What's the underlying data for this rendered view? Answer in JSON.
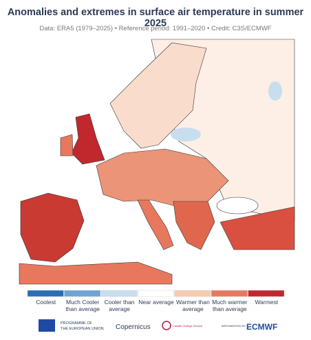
{
  "header": {
    "title": "Anomalies and extremes in surface air temperature in summer 2025",
    "subtitle": "Data: ERA5 (1979–2025) • Reference period: 1991–2020 • Credit: C3S/ECMWF"
  },
  "legend": {
    "items": [
      {
        "label": "Coolest",
        "color": "#2a6fb5"
      },
      {
        "label": "Much Cooler than average",
        "color": "#6fa3d6"
      },
      {
        "label": "Cooler than average",
        "color": "#c7deef"
      },
      {
        "label": "Near average",
        "color": "#ffffff"
      },
      {
        "label": "Warmer than average",
        "color": "#f8c9b1"
      },
      {
        "label": "Much warmer than average",
        "color": "#e7785e"
      },
      {
        "label": "Warmest",
        "color": "#c0282d"
      }
    ]
  },
  "footer": {
    "eu": [
      "PROGRAMME OF",
      "THE EUROPEAN UNION"
    ],
    "copernicus": "Copernicus",
    "c3s": "Climate Change Service",
    "implemented": "IMPLEMENTED BY",
    "ecmwf": "ECMWF"
  }
}
